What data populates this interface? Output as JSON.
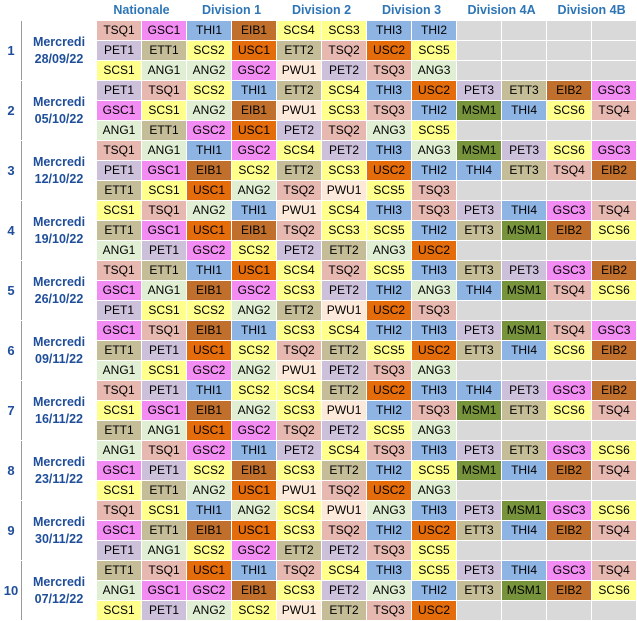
{
  "headers": [
    "Nationale",
    "Division 1",
    "Division 2",
    "Division 3",
    "Division 4A",
    "Division 4B"
  ],
  "colors": {
    "TSQ": "#e6b8b0",
    "GSC": "#f28cf2",
    "PET": "#ccc0da",
    "ETT": "#c4bd97",
    "SCS": "#ffff8c",
    "ANG": "#e0efd4",
    "THI": "#8eb4e3",
    "EIB": "#c0702c",
    "USC": "#e46c0a",
    "PWU": "#fde9d9",
    "MSM": "#77933c",
    "empty": "#d9d9d9"
  },
  "weeks": [
    {
      "num": "1",
      "day": "Mercredi",
      "date": "28/09/22",
      "rows": [
        [
          "TSQ1",
          "GSC1",
          "THI1",
          "EIB1",
          "SCS4",
          "SCS3",
          "THI3",
          "THI2",
          "",
          "",
          "",
          ""
        ],
        [
          "PET1",
          "ETT1",
          "SCS2",
          "USC1",
          "ETT2",
          "TSQ2",
          "USC2",
          "SCS5",
          "",
          "",
          "",
          ""
        ],
        [
          "SCS1",
          "ANG1",
          "ANG2",
          "GSC2",
          "PWU1",
          "PET2",
          "TSQ3",
          "ANG3",
          "",
          "",
          "",
          ""
        ]
      ]
    },
    {
      "num": "2",
      "day": "Mercredi",
      "date": "05/10/22",
      "rows": [
        [
          "PET1",
          "TSQ1",
          "SCS2",
          "THI1",
          "ETT2",
          "SCS4",
          "THI3",
          "USC2",
          "PET3",
          "ETT3",
          "EIB2",
          "GSC3"
        ],
        [
          "GSC1",
          "SCS1",
          "ANG2",
          "EIB1",
          "PWU1",
          "SCS3",
          "TSQ3",
          "THI2",
          "MSM1",
          "THI4",
          "SCS6",
          "TSQ4"
        ],
        [
          "ANG1",
          "ETT1",
          "GSC2",
          "USC1",
          "PET2",
          "TSQ2",
          "ANG3",
          "SCS5",
          "",
          "",
          "",
          ""
        ]
      ]
    },
    {
      "num": "3",
      "day": "Mercredi",
      "date": "12/10/22",
      "rows": [
        [
          "TSQ1",
          "ANG1",
          "THI1",
          "GSC2",
          "SCS4",
          "PET2",
          "THI3",
          "ANG3",
          "MSM1",
          "PET3",
          "SCS6",
          "GSC3"
        ],
        [
          "PET1",
          "GSC1",
          "EIB1",
          "SCS2",
          "ETT2",
          "SCS3",
          "USC2",
          "THI2",
          "THI4",
          "ETT3",
          "TSQ4",
          "EIB2"
        ],
        [
          "ETT1",
          "SCS1",
          "USC1",
          "ANG2",
          "TSQ2",
          "PWU1",
          "SCS5",
          "TSQ3",
          "",
          "",
          "",
          ""
        ]
      ]
    },
    {
      "num": "4",
      "day": "Mercredi",
      "date": "19/10/22",
      "rows": [
        [
          "SCS1",
          "TSQ1",
          "ANG2",
          "THI1",
          "PWU1",
          "SCS4",
          "THI3",
          "TSQ3",
          "PET3",
          "THI4",
          "GSC3",
          "TSQ4"
        ],
        [
          "ETT1",
          "GSC1",
          "USC1",
          "EIB1",
          "TSQ2",
          "SCS3",
          "SCS5",
          "THI2",
          "ETT3",
          "MSM1",
          "EIB2",
          "SCS6"
        ],
        [
          "ANG1",
          "PET1",
          "GSC2",
          "SCS2",
          "PET2",
          "ETT2",
          "ANG3",
          "USC2",
          "",
          "",
          "",
          ""
        ]
      ]
    },
    {
      "num": "5",
      "day": "Mercredi",
      "date": "26/10/22",
      "rows": [
        [
          "TSQ1",
          "ETT1",
          "THI1",
          "USC1",
          "SCS4",
          "TSQ2",
          "SCS5",
          "THI3",
          "ETT3",
          "PET3",
          "GSC3",
          "EIB2"
        ],
        [
          "GSC1",
          "ANG1",
          "EIB1",
          "GSC2",
          "SCS3",
          "PET2",
          "THI2",
          "ANG3",
          "THI4",
          "MSM1",
          "TSQ4",
          "SCS6"
        ],
        [
          "PET1",
          "SCS1",
          "SCS2",
          "ANG2",
          "ETT2",
          "PWU1",
          "USC2",
          "TSQ3",
          "",
          "",
          "",
          ""
        ]
      ]
    },
    {
      "num": "6",
      "day": "Mercredi",
      "date": "09/11/22",
      "rows": [
        [
          "GSC1",
          "TSQ1",
          "EIB1",
          "THI1",
          "SCS3",
          "SCS4",
          "THI2",
          "THI3",
          "PET3",
          "MSM1",
          "TSQ4",
          "GSC3"
        ],
        [
          "ETT1",
          "PET1",
          "USC1",
          "SCS2",
          "TSQ2",
          "ETT2",
          "SCS5",
          "USC2",
          "ETT3",
          "THI4",
          "SCS6",
          "EIB2"
        ],
        [
          "ANG1",
          "SCS1",
          "GSC2",
          "ANG2",
          "PWU1",
          "PET2",
          "TSQ3",
          "ANG3",
          "",
          "",
          "",
          ""
        ]
      ]
    },
    {
      "num": "7",
      "day": "Mercredi",
      "date": "16/11/22",
      "rows": [
        [
          "TSQ1",
          "PET1",
          "THI1",
          "SCS2",
          "SCS4",
          "ETT2",
          "USC2",
          "THI3",
          "THI4",
          "PET3",
          "GSC3",
          "EIB2"
        ],
        [
          "SCS1",
          "GSC1",
          "EIB1",
          "ANG2",
          "SCS3",
          "PWU1",
          "THI2",
          "TSQ3",
          "MSM1",
          "ETT3",
          "SCS6",
          "TSQ4"
        ],
        [
          "ETT1",
          "ANG1",
          "USC1",
          "GSC2",
          "TSQ2",
          "PET2",
          "SCS5",
          "ANG3",
          "",
          "",
          "",
          ""
        ]
      ]
    },
    {
      "num": "8",
      "day": "Mercredi",
      "date": "23/11/22",
      "rows": [
        [
          "ANG1",
          "TSQ1",
          "GSC2",
          "THI1",
          "PET2",
          "SCS4",
          "TSQ3",
          "THI3",
          "PET3",
          "ETT3",
          "GSC3",
          "SCS6"
        ],
        [
          "GSC1",
          "PET1",
          "SCS2",
          "EIB1",
          "SCS3",
          "ETT2",
          "THI2",
          "SCS5",
          "MSM1",
          "THI4",
          "EIB2",
          "TSQ4"
        ],
        [
          "SCS1",
          "ETT1",
          "ANG2",
          "USC1",
          "PWU1",
          "TSQ2",
          "USC2",
          "ANG3",
          "",
          "",
          "",
          ""
        ]
      ]
    },
    {
      "num": "9",
      "day": "Mercredi",
      "date": "30/11/22",
      "rows": [
        [
          "TSQ1",
          "SCS1",
          "THI1",
          "ANG2",
          "SCS4",
          "PWU1",
          "ANG3",
          "THI3",
          "PET3",
          "MSM1",
          "GSC3",
          "SCS6"
        ],
        [
          "GSC1",
          "ETT1",
          "EIB1",
          "USC1",
          "SCS3",
          "TSQ2",
          "THI2",
          "USC2",
          "ETT3",
          "THI4",
          "EIB2",
          "TSQ4"
        ],
        [
          "PET1",
          "ANG1",
          "SCS2",
          "GSC2",
          "ETT2",
          "PET2",
          "TSQ3",
          "SCS5",
          "",
          "",
          "",
          ""
        ]
      ]
    },
    {
      "num": "10",
      "day": "Mercredi",
      "date": "07/12/22",
      "rows": [
        [
          "ETT1",
          "TSQ1",
          "USC1",
          "THI1",
          "TSQ2",
          "SCS4",
          "THI3",
          "SCS5",
          "PET3",
          "THI4",
          "GSC3",
          "TSQ4"
        ],
        [
          "ANG1",
          "GSC1",
          "GSC2",
          "EIB1",
          "SCS3",
          "PET2",
          "ANG3",
          "THI2",
          "ETT3",
          "MSM1",
          "EIB2",
          "SCS6"
        ],
        [
          "SCS1",
          "PET1",
          "ANG2",
          "SCS2",
          "PWU1",
          "ETT2",
          "TSQ3",
          "USC2",
          "",
          "",
          "",
          ""
        ]
      ]
    }
  ]
}
